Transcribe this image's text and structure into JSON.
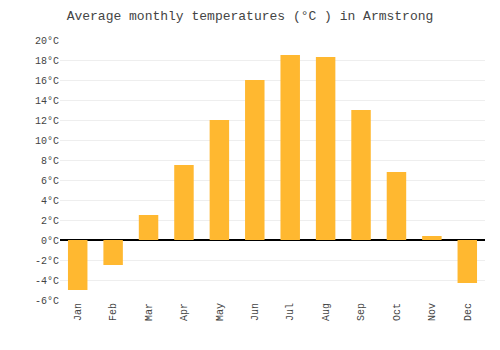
{
  "chart_data": {
    "type": "bar",
    "title": "Average monthly temperatures (°C ) in Armstrong",
    "categories": [
      "Jan",
      "Feb",
      "Mar",
      "Apr",
      "May",
      "Jun",
      "Jul",
      "Aug",
      "Sep",
      "Oct",
      "Nov",
      "Dec"
    ],
    "values": [
      -5.0,
      -2.5,
      2.5,
      7.5,
      12.0,
      16.0,
      18.5,
      18.3,
      13.0,
      6.8,
      0.4,
      -4.3
    ],
    "color": "#FFB830",
    "ylim": [
      -6,
      20
    ],
    "yticks": [
      {
        "value": -6,
        "label": "-6°C"
      },
      {
        "value": -4,
        "label": "-4°C"
      },
      {
        "value": -2,
        "label": "-2°C"
      },
      {
        "value": 0,
        "label": "0°C"
      },
      {
        "value": 2,
        "label": "2°C"
      },
      {
        "value": 4,
        "label": "4°C"
      },
      {
        "value": 6,
        "label": "6°C"
      },
      {
        "value": 8,
        "label": "8°C"
      },
      {
        "value": 10,
        "label": "10°C"
      },
      {
        "value": 12,
        "label": "12°C"
      },
      {
        "value": 14,
        "label": "14°C"
      },
      {
        "value": 16,
        "label": "16°C"
      },
      {
        "value": 18,
        "label": "18°C"
      },
      {
        "value": 20,
        "label": "20°C"
      }
    ],
    "grid": true
  }
}
